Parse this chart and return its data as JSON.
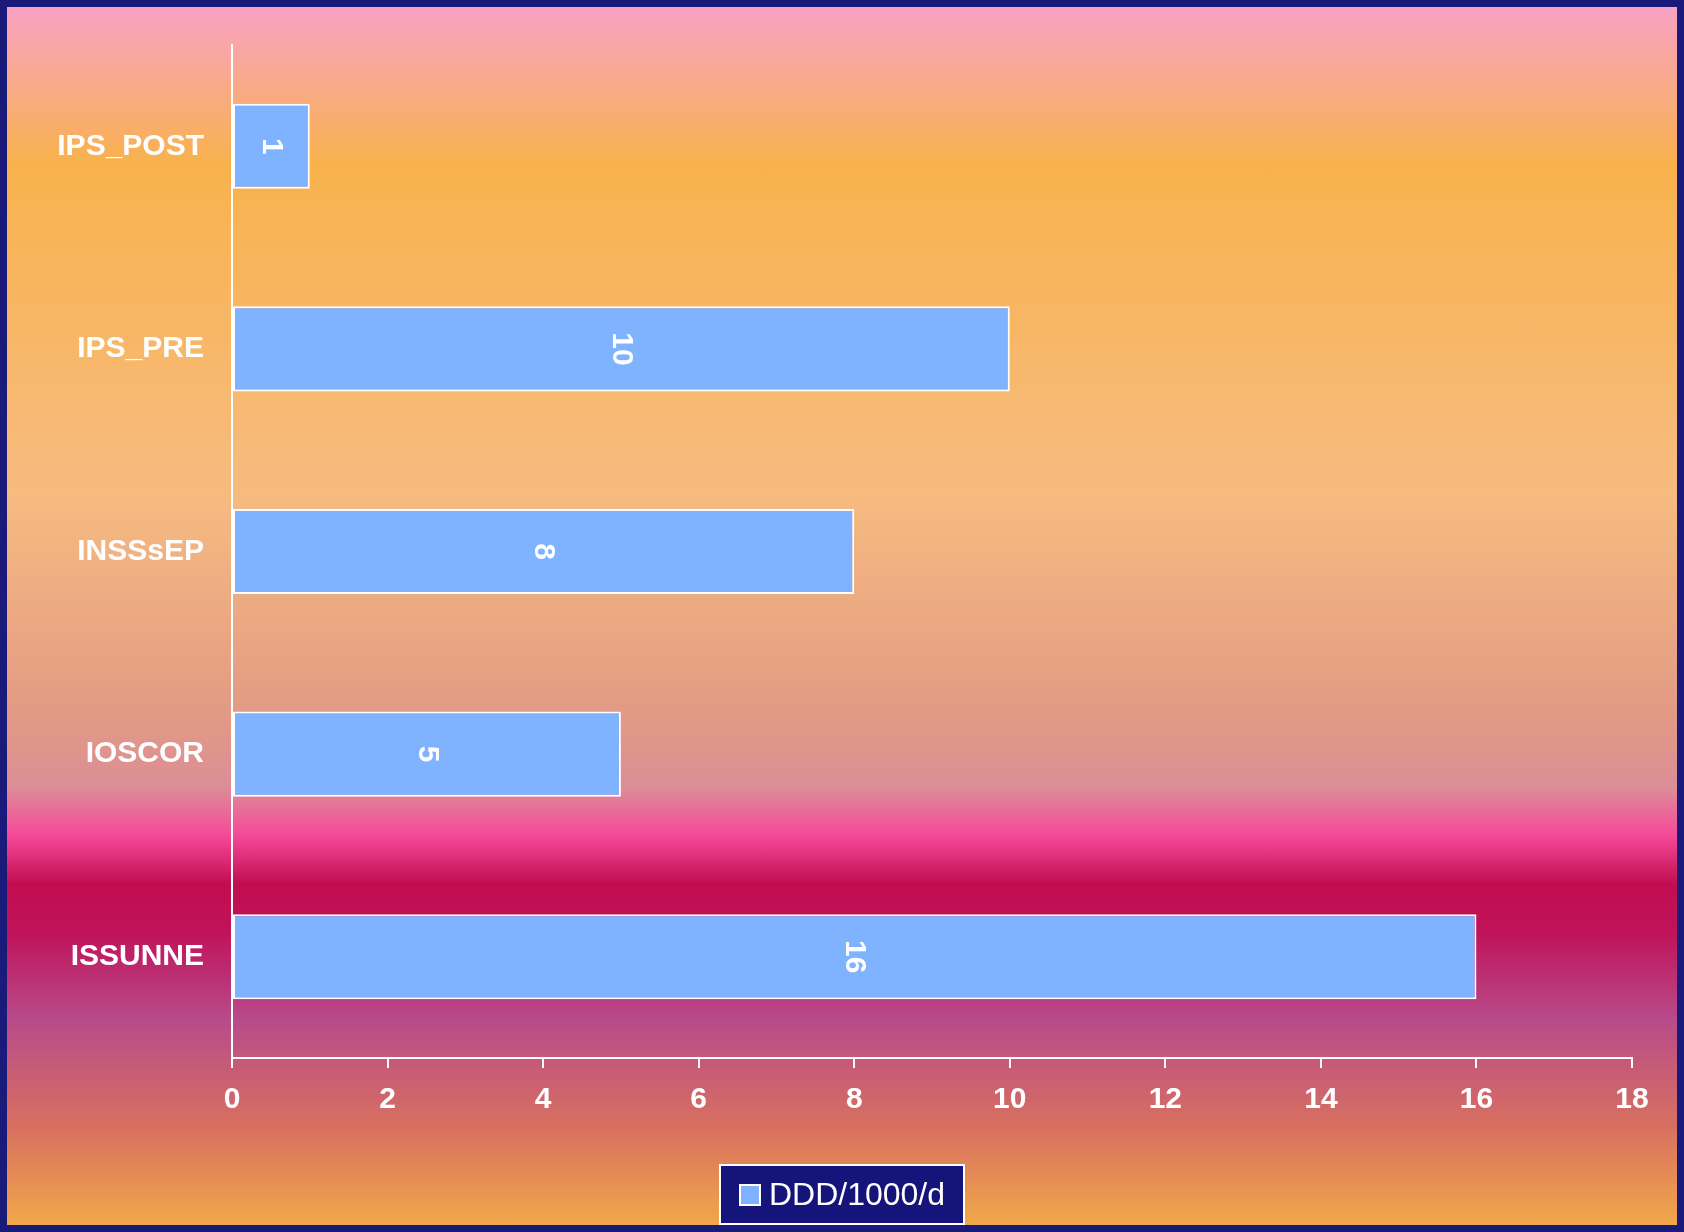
{
  "chart_data": {
    "type": "bar",
    "orientation": "horizontal",
    "categories": [
      "IPS_POST",
      "IPS_PRE",
      "INSSsEP",
      "IOSCOR",
      "ISSUNNE"
    ],
    "series": [
      {
        "name": "DDD/1000/d",
        "color": "#7fb2ff",
        "values": [
          1,
          10,
          8,
          5,
          16
        ]
      }
    ],
    "xlim": [
      0,
      18
    ],
    "xticks": [
      0,
      2,
      4,
      6,
      8,
      10,
      12,
      14,
      16,
      18
    ],
    "grid": false,
    "legend": "bottom",
    "data_labels": true
  }
}
